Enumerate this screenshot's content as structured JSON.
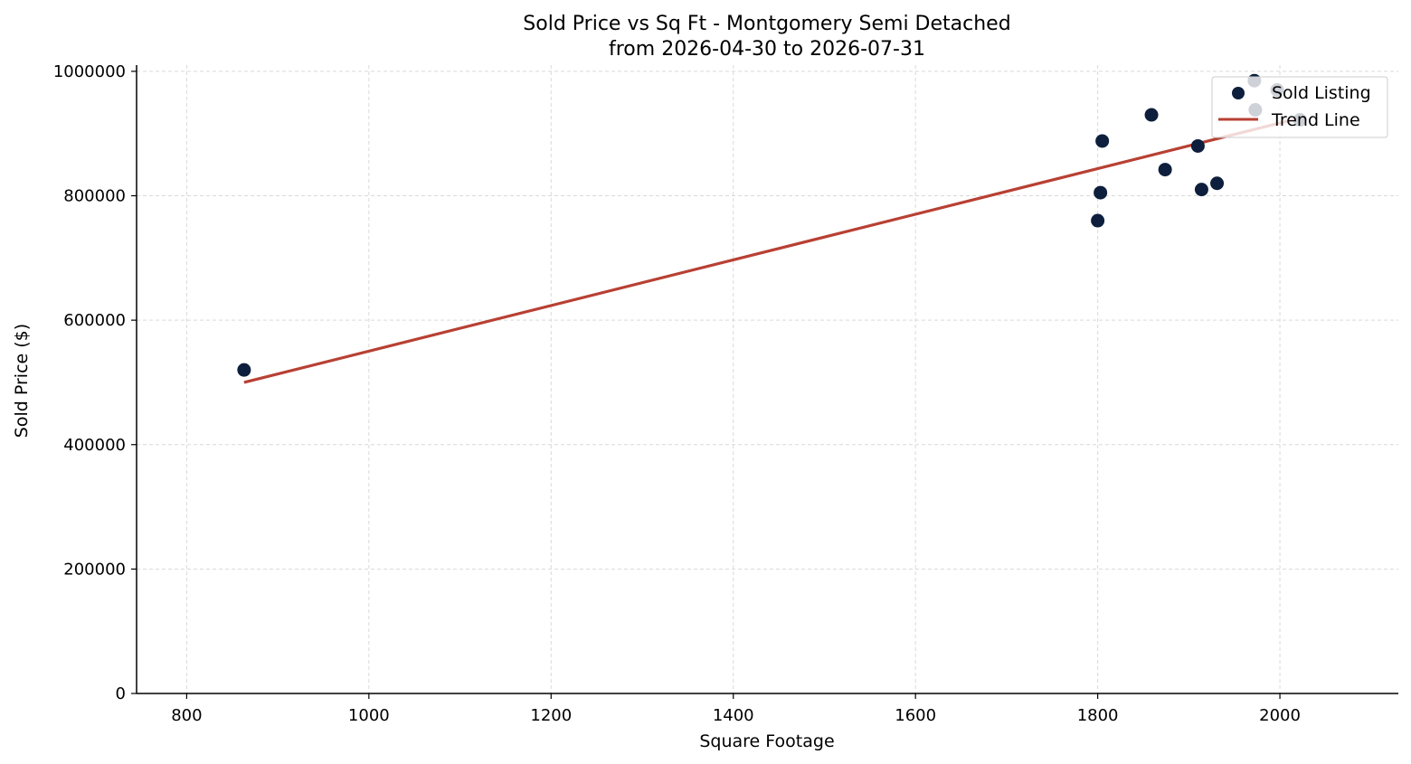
{
  "chart_data": {
    "type": "scatter",
    "title": "Sold Price vs Sq Ft - Montgomery Semi Detached",
    "subtitle": "from 2026-04-30 to 2026-07-31",
    "xlabel": "Square Footage",
    "ylabel": "Sold Price ($)",
    "xlim": [
      745,
      2130
    ],
    "ylim": [
      0,
      1010000
    ],
    "xticks": [
      800,
      1000,
      1200,
      1400,
      1600,
      1800,
      2000
    ],
    "yticks": [
      0,
      200000,
      400000,
      600000,
      800000,
      1000000
    ],
    "grid": true,
    "legend_position": "top-right",
    "series": [
      {
        "name": "Sold Listing",
        "type": "scatter",
        "color": "#0d1f3c",
        "points": [
          {
            "x": 863,
            "y": 520000
          },
          {
            "x": 1800,
            "y": 760000
          },
          {
            "x": 1803,
            "y": 805000
          },
          {
            "x": 1805,
            "y": 888000
          },
          {
            "x": 1859,
            "y": 930000
          },
          {
            "x": 1874,
            "y": 842000
          },
          {
            "x": 1910,
            "y": 880000
          },
          {
            "x": 1914,
            "y": 810000
          },
          {
            "x": 1931,
            "y": 820000
          },
          {
            "x": 1972,
            "y": 985000
          },
          {
            "x": 1973,
            "y": 938000
          },
          {
            "x": 1997,
            "y": 970000
          },
          {
            "x": 2022,
            "y": 922000
          }
        ]
      },
      {
        "name": "Trend Line",
        "type": "line",
        "color": "#b84033",
        "points": [
          {
            "x": 863,
            "y": 500000
          },
          {
            "x": 2022,
            "y": 925000
          }
        ]
      }
    ]
  }
}
